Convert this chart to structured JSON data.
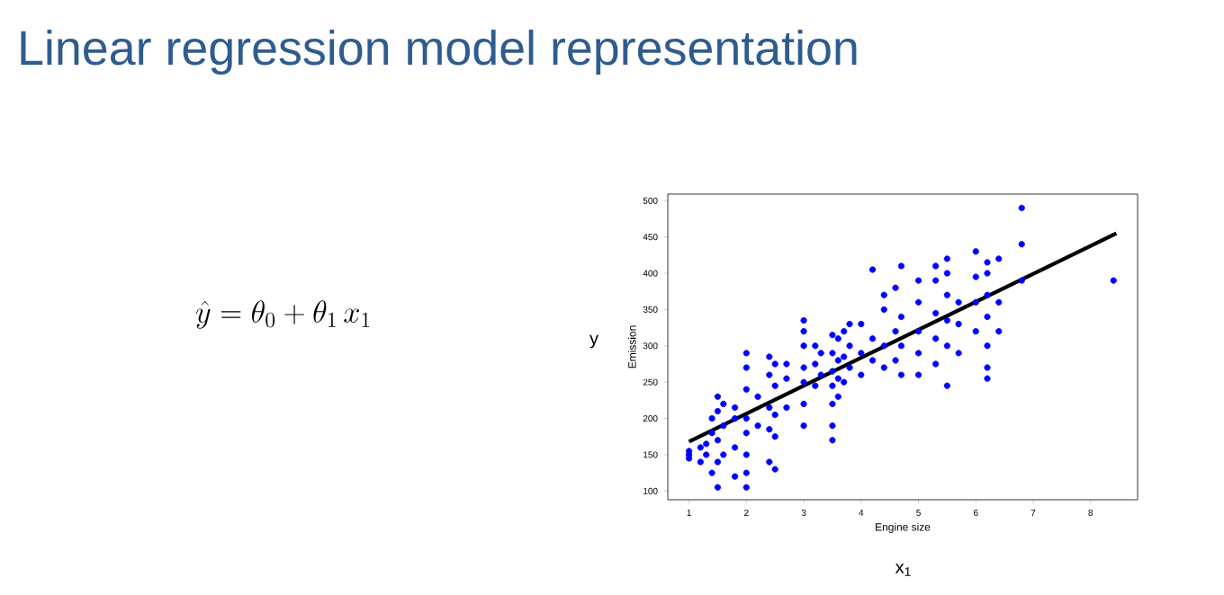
{
  "chart_data": {
    "type": "scatter",
    "title": "Linear regression model representation",
    "xlabel": "Engine size",
    "ylabel": "Emission",
    "annotations": [
      "\\hat{y}=\\theta_0+\\theta_1\\,x_1",
      "y",
      "x$_{1}$"
    ],
    "xlim": [
      0.63,
      8.82
    ],
    "ylim": [
      88,
      509
    ],
    "xticks": [
      1,
      2,
      3,
      4,
      5,
      6,
      7,
      8
    ],
    "yticks": [
      100,
      150,
      200,
      250,
      300,
      350,
      400,
      450,
      500
    ],
    "grid": false,
    "series": [
      {
        "color": "#0000ff",
        "marker": "circle",
        "x": [
          1.0,
          1.0,
          1.0,
          1.2,
          1.2,
          1.3,
          1.3,
          1.4,
          1.4,
          1.4,
          1.5,
          1.5,
          1.5,
          1.5,
          1.5,
          1.6,
          1.6,
          1.6,
          1.8,
          1.8,
          1.8,
          1.8,
          2.0,
          2.0,
          2.0,
          2.0,
          2.0,
          2.0,
          2.0,
          2.0,
          2.2,
          2.2,
          2.4,
          2.4,
          2.4,
          2.4,
          2.4,
          2.5,
          2.5,
          2.5,
          2.5,
          2.5,
          2.7,
          2.7,
          2.7,
          3.0,
          3.0,
          3.0,
          3.0,
          3.0,
          3.0,
          3.0,
          3.2,
          3.2,
          3.2,
          3.3,
          3.3,
          3.5,
          3.5,
          3.5,
          3.5,
          3.5,
          3.5,
          3.5,
          3.6,
          3.6,
          3.6,
          3.6,
          3.7,
          3.7,
          3.7,
          3.8,
          3.8,
          3.8,
          4.0,
          4.0,
          4.0,
          4.2,
          4.2,
          4.2,
          4.4,
          4.4,
          4.4,
          4.4,
          4.6,
          4.6,
          4.6,
          4.7,
          4.7,
          4.7,
          4.7,
          5.0,
          5.0,
          5.0,
          5.0,
          5.0,
          5.3,
          5.3,
          5.3,
          5.3,
          5.3,
          5.5,
          5.5,
          5.5,
          5.5,
          5.5,
          5.5,
          5.7,
          5.7,
          5.7,
          6.0,
          6.0,
          6.0,
          6.0,
          6.2,
          6.2,
          6.2,
          6.2,
          6.2,
          6.2,
          6.2,
          6.4,
          6.4,
          6.4,
          6.8,
          6.8,
          6.8,
          8.4
        ],
        "values": [
          145,
          150,
          155,
          140,
          160,
          165,
          150,
          125,
          180,
          200,
          105,
          140,
          170,
          210,
          230,
          150,
          190,
          220,
          120,
          160,
          200,
          215,
          105,
          125,
          150,
          180,
          200,
          240,
          270,
          290,
          190,
          230,
          140,
          185,
          215,
          260,
          285,
          130,
          175,
          205,
          245,
          275,
          215,
          255,
          275,
          190,
          220,
          250,
          270,
          300,
          320,
          335,
          245,
          275,
          300,
          260,
          290,
          170,
          190,
          220,
          245,
          265,
          290,
          315,
          230,
          255,
          280,
          310,
          250,
          285,
          320,
          270,
          300,
          330,
          260,
          290,
          330,
          280,
          310,
          405,
          270,
          300,
          350,
          370,
          280,
          320,
          380,
          260,
          300,
          340,
          410,
          260,
          290,
          320,
          360,
          390,
          275,
          310,
          345,
          390,
          410,
          245,
          300,
          335,
          370,
          400,
          420,
          290,
          330,
          360,
          320,
          360,
          395,
          430,
          255,
          270,
          300,
          340,
          370,
          400,
          415,
          320,
          360,
          420,
          440,
          490,
          390,
          390
        ]
      },
      {
        "type": "line",
        "color": "#000000",
        "marker": "none",
        "x": [
          1,
          8.45
        ],
        "values": [
          168,
          455
        ]
      }
    ]
  }
}
